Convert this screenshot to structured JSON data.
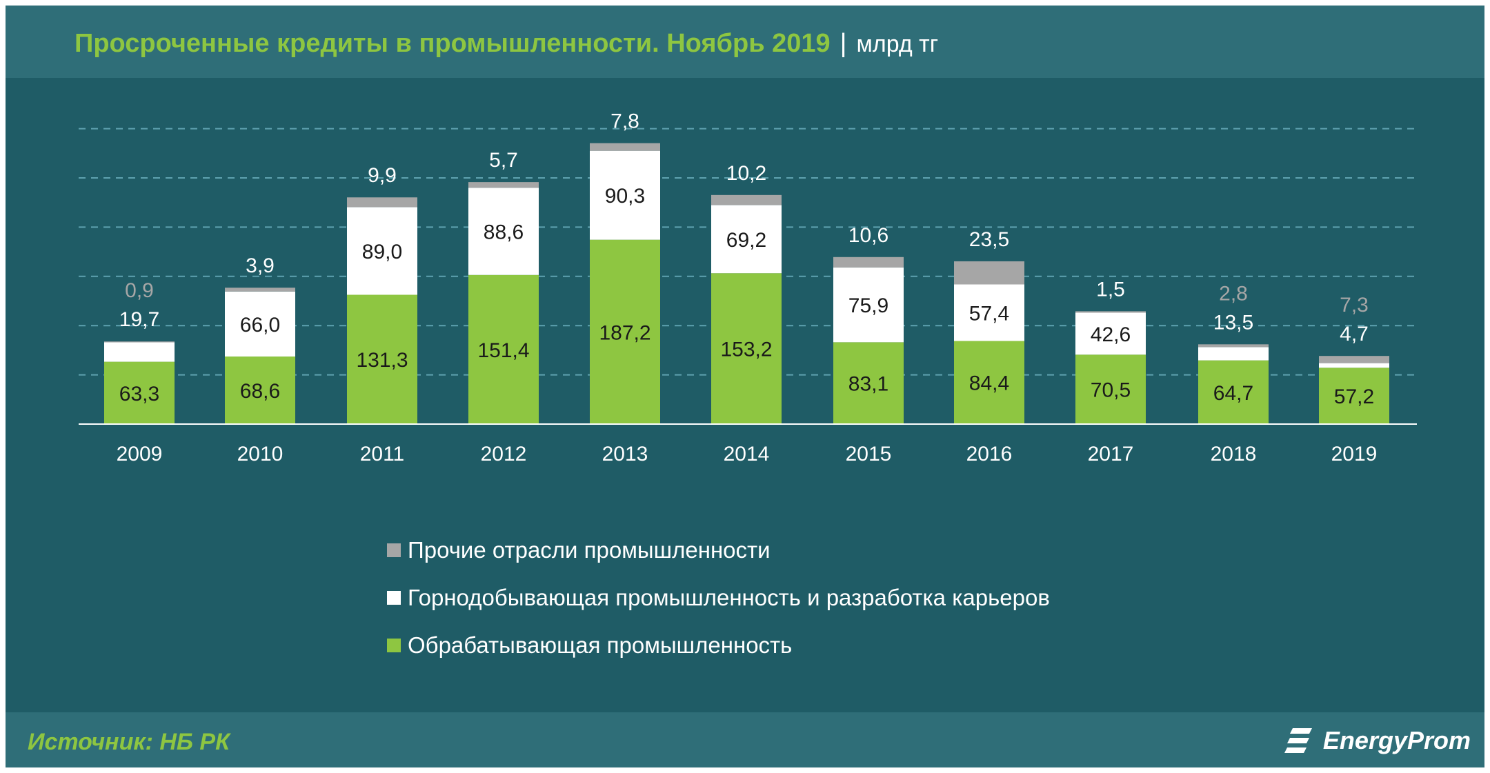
{
  "header": {
    "title": "Просроченные кредиты в промышленности. Ноябрь 2019",
    "separator": "|",
    "unit": "млрд тг"
  },
  "footer": {
    "source": "Источник: НБ РК",
    "logo_text": "EnergyProm",
    "logo_icon": "energyprom-logo-icon"
  },
  "colors": {
    "background": "#1f5c66",
    "header_band": "#2f6e78",
    "title_green": "#8ec641",
    "manufacturing": "#8ec641",
    "mining": "#ffffff",
    "other": "#a6a6a6"
  },
  "chart_data": {
    "type": "bar",
    "stacked": true,
    "title": "Просроченные кредиты в промышленности. Ноябрь 2019",
    "unit": "млрд тг",
    "categories": [
      "2009",
      "2010",
      "2011",
      "2012",
      "2013",
      "2014",
      "2015",
      "2016",
      "2017",
      "2018",
      "2019"
    ],
    "series": [
      {
        "name": "Обрабатывающая промышленность",
        "color": "#8ec641",
        "values": [
          63.3,
          68.6,
          131.3,
          151.4,
          187.2,
          153.2,
          83.1,
          84.4,
          70.5,
          64.7,
          57.2
        ],
        "labels": [
          "63,3",
          "68,6",
          "131,3",
          "151,4",
          "187,2",
          "153,2",
          "83,1",
          "84,4",
          "70,5",
          "64,7",
          "57,2"
        ]
      },
      {
        "name": "Горнодобывающая промышленность и разработка карьеров",
        "color": "#ffffff",
        "values": [
          19.7,
          66.0,
          89.0,
          88.6,
          90.3,
          69.2,
          75.9,
          57.4,
          42.6,
          13.5,
          4.7
        ],
        "labels": [
          "19,7",
          "66,0",
          "89,0",
          "88,6",
          "90,3",
          "69,2",
          "75,9",
          "57,4",
          "42,6",
          "13,5",
          "4,7"
        ]
      },
      {
        "name": "Прочие отрасли промышленности",
        "color": "#a6a6a6",
        "values": [
          0.9,
          3.9,
          9.9,
          5.7,
          7.8,
          10.2,
          10.6,
          23.5,
          1.5,
          2.8,
          7.3
        ],
        "labels": [
          "0,9",
          "3,9",
          "9,9",
          "5,7",
          "7,8",
          "10,2",
          "10,6",
          "23,5",
          "1,5",
          "2,8",
          "7,3"
        ]
      }
    ],
    "legend_order": [
      2,
      1,
      0
    ],
    "legend_position": "bottom-center",
    "grid": "horizontal-dashed",
    "ylim": [
      0,
      320
    ]
  }
}
